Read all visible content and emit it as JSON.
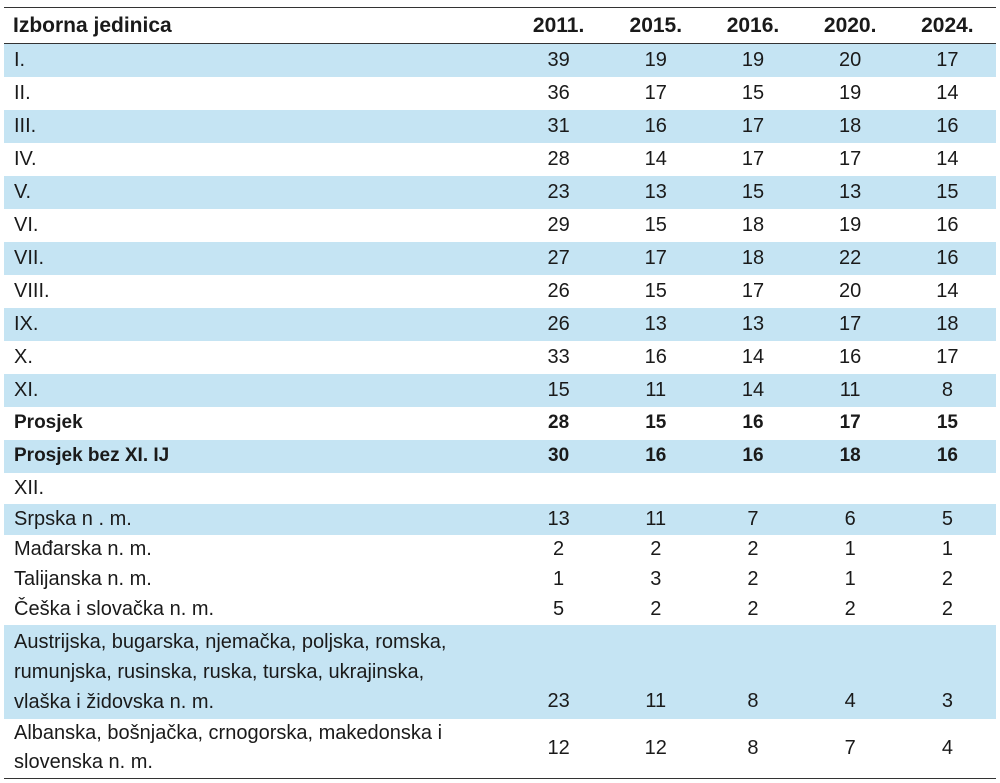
{
  "table": {
    "headers": [
      "Izborna jedinica",
      "2011.",
      "2015.",
      "2016.",
      "2020.",
      "2024."
    ],
    "rows": [
      {
        "label": "I.",
        "values": [
          "39",
          "19",
          "19",
          "20",
          "17"
        ]
      },
      {
        "label": "II.",
        "values": [
          "36",
          "17",
          "15",
          "19",
          "14"
        ]
      },
      {
        "label": "III.",
        "values": [
          "31",
          "16",
          "17",
          "18",
          "16"
        ]
      },
      {
        "label": "IV.",
        "values": [
          "28",
          "14",
          "17",
          "17",
          "14"
        ]
      },
      {
        "label": "V.",
        "values": [
          "23",
          "13",
          "15",
          "13",
          "15"
        ]
      },
      {
        "label": "VI.",
        "values": [
          "29",
          "15",
          "18",
          "19",
          "16"
        ]
      },
      {
        "label": "VII.",
        "values": [
          "27",
          "17",
          "18",
          "22",
          "16"
        ]
      },
      {
        "label": "VIII.",
        "values": [
          "26",
          "15",
          "17",
          "20",
          "14"
        ]
      },
      {
        "label": "IX.",
        "values": [
          "26",
          "13",
          "13",
          "17",
          "18"
        ]
      },
      {
        "label": "X.",
        "values": [
          "33",
          "16",
          "14",
          "16",
          "17"
        ]
      },
      {
        "label": "XI.",
        "values": [
          "15",
          "11",
          "14",
          "11",
          "8"
        ]
      },
      {
        "label": "Prosjek",
        "values": [
          "28",
          "15",
          "16",
          "17",
          "15"
        ]
      },
      {
        "label": "Prosjek bez XI. IJ",
        "values": [
          "30",
          "16",
          "16",
          "18",
          "16"
        ]
      },
      {
        "label": "XII.",
        "values": [
          "",
          "",
          "",
          "",
          ""
        ]
      },
      {
        "label": "Srpska n . m.",
        "values": [
          "13",
          "11",
          "7",
          "6",
          "5"
        ]
      },
      {
        "label": "Mađarska n. m.",
        "values": [
          "2",
          "2",
          "2",
          "1",
          "1"
        ]
      },
      {
        "label": "Talijanska n. m.",
        "values": [
          "1",
          "3",
          "2",
          "1",
          "2"
        ]
      },
      {
        "label": "Češka i slovačka n. m.",
        "values": [
          "5",
          "2",
          "2",
          "2",
          "2"
        ]
      },
      {
        "label_lines": [
          "Austrijska, bugarska, njemačka, poljska, romska,",
          "rumunjska, rusinska, ruska, turska, ukrajinska,",
          "vlaška i židovska n. m."
        ],
        "values": [
          "23",
          "11",
          "8",
          "4",
          "3"
        ]
      },
      {
        "label_lines": [
          "Albanska, bošnjačka, crnogorska, makedonska i",
          "slovenska n. m."
        ],
        "values": [
          "12",
          "12",
          "8",
          "7",
          "4"
        ]
      }
    ]
  }
}
